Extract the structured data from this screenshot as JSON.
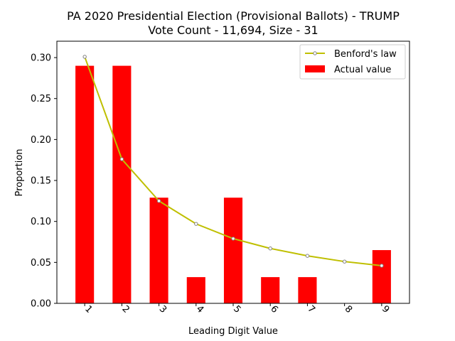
{
  "chart_data": {
    "type": "bar",
    "title": "PA 2020 Presidential Election (Provisional Ballots) - TRUMP",
    "subtitle": "Vote Count - 11,694, Size - 31",
    "xlabel": "Leading Digit Value",
    "ylabel": "Proportion",
    "categories": [
      "1",
      "2",
      "3",
      "4",
      "5",
      "6",
      "7",
      "8",
      "9"
    ],
    "ylim": [
      0,
      0.32
    ],
    "yticks": [
      0.0,
      0.05,
      0.1,
      0.15,
      0.2,
      0.25,
      0.3
    ],
    "ytick_labels": [
      "0.00",
      "0.05",
      "0.10",
      "0.15",
      "0.20",
      "0.25",
      "0.30"
    ],
    "xtick_rotation_deg": 45,
    "grid": false,
    "legend_position": "top-right",
    "series": [
      {
        "name": "Actual value",
        "kind": "bar",
        "color": "#ff0000",
        "values": [
          0.29,
          0.29,
          0.129,
          0.032,
          0.129,
          0.032,
          0.032,
          0.0,
          0.065
        ]
      },
      {
        "name": "Benford's law",
        "kind": "line",
        "color": "#bfbf00",
        "marker": "circle",
        "marker_face": "#ffffff",
        "marker_edge": "#808080",
        "values": [
          0.301,
          0.176,
          0.125,
          0.097,
          0.079,
          0.067,
          0.058,
          0.051,
          0.046
        ]
      }
    ]
  }
}
